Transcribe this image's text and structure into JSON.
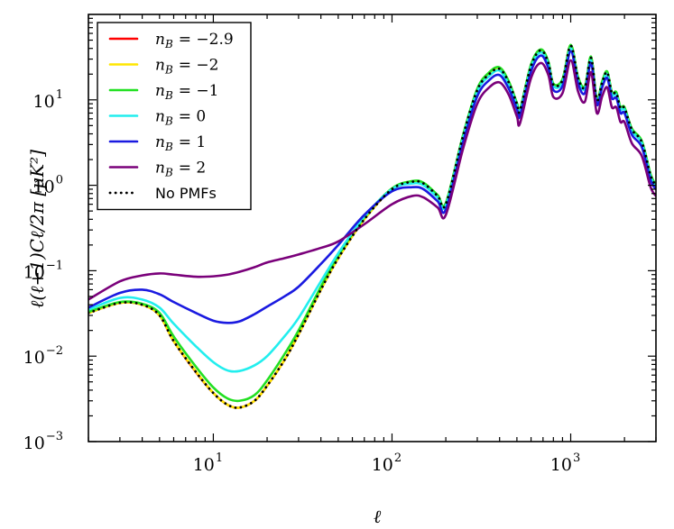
{
  "chart_data": {
    "type": "line",
    "title": "",
    "xlabel": "ℓ",
    "ylabel": "ℓ(ℓ+1)Cℓ/2π [μK²]",
    "xscale": "log",
    "yscale": "log",
    "xlim": [
      2,
      3000
    ],
    "ylim": [
      0.001,
      100
    ],
    "x_ticks": [
      {
        "value": 10,
        "base": "10",
        "exp": "1"
      },
      {
        "value": 100,
        "base": "10",
        "exp": "2"
      },
      {
        "value": 1000,
        "base": "10",
        "exp": "3"
      }
    ],
    "y_ticks": [
      {
        "value": 0.001,
        "base": "10",
        "exp": "−3"
      },
      {
        "value": 0.01,
        "base": "10",
        "exp": "−2"
      },
      {
        "value": 0.1,
        "base": "10",
        "exp": "−1"
      },
      {
        "value": 1,
        "base": "10",
        "exp": "0"
      },
      {
        "value": 10,
        "base": "10",
        "exp": "1"
      }
    ],
    "legend_position": "top-left",
    "series": [
      {
        "name": "n_B = −2.9",
        "label_var": "n",
        "label_sub": "B",
        "label_val": "= −2.9",
        "color": "#ff0000",
        "dash": "solid",
        "x": [
          2,
          3,
          4,
          5,
          6,
          8,
          10,
          12,
          14,
          17,
          20,
          25,
          30,
          40,
          50,
          70,
          100,
          130,
          150,
          180,
          200,
          250,
          300,
          350,
          400,
          450,
          500,
          520,
          600,
          680,
          750,
          800,
          900,
          1000,
          1100,
          1200,
          1300,
          1400,
          1500,
          1600,
          1700,
          1800,
          1900,
          2000,
          2200,
          2500,
          2800,
          3000
        ],
        "y": [
          0.032,
          0.042,
          0.04,
          0.03,
          0.015,
          0.0065,
          0.0037,
          0.0027,
          0.0025,
          0.003,
          0.0045,
          0.009,
          0.018,
          0.06,
          0.14,
          0.4,
          0.9,
          1.1,
          1.05,
          0.75,
          0.6,
          3.8,
          13,
          20,
          23,
          16,
          9,
          7.5,
          25,
          38,
          27,
          15,
          17,
          43,
          18,
          14,
          31,
          10,
          16,
          21,
          12,
          12,
          8,
          8,
          4.5,
          3.2,
          1.3,
          1.0
        ]
      },
      {
        "name": "n_B = −2",
        "label_var": "n",
        "label_sub": "B",
        "label_val": "= −2",
        "color": "#ffe600",
        "dash": "solid",
        "x": [
          2,
          3,
          4,
          5,
          6,
          8,
          10,
          12,
          14,
          17,
          20,
          25,
          30,
          40,
          50,
          70,
          100,
          130,
          150,
          180,
          200,
          250,
          300,
          350,
          400,
          450,
          500,
          520,
          600,
          680,
          750,
          800,
          900,
          1000,
          1100,
          1200,
          1300,
          1400,
          1500,
          1600,
          1700,
          1800,
          1900,
          2000,
          2200,
          2500,
          2800,
          3000
        ],
        "y": [
          0.032,
          0.042,
          0.04,
          0.03,
          0.015,
          0.0066,
          0.0037,
          0.0027,
          0.0025,
          0.003,
          0.0045,
          0.009,
          0.018,
          0.06,
          0.14,
          0.4,
          0.9,
          1.1,
          1.05,
          0.75,
          0.6,
          3.8,
          13,
          20,
          23,
          16,
          9,
          7.5,
          25,
          38,
          27,
          15,
          17,
          43,
          18,
          14,
          31,
          10,
          16,
          21,
          12,
          12,
          8,
          8,
          4.5,
          3.2,
          1.3,
          1.0
        ]
      },
      {
        "name": "n_B = −1",
        "label_var": "n",
        "label_sub": "B",
        "label_val": "= −1",
        "color": "#22e022",
        "dash": "solid",
        "x": [
          2,
          3,
          4,
          5,
          6,
          8,
          10,
          12,
          14,
          17,
          20,
          25,
          30,
          40,
          50,
          70,
          100,
          130,
          150,
          180,
          200,
          250,
          300,
          350,
          400,
          450,
          500,
          520,
          600,
          680,
          750,
          800,
          900,
          1000,
          1100,
          1200,
          1300,
          1400,
          1500,
          1600,
          1700,
          1800,
          1900,
          2000,
          2200,
          2500,
          2800,
          3000
        ],
        "y": [
          0.033,
          0.043,
          0.041,
          0.032,
          0.017,
          0.0075,
          0.0043,
          0.0032,
          0.003,
          0.0035,
          0.0052,
          0.0105,
          0.02,
          0.065,
          0.15,
          0.42,
          0.92,
          1.12,
          1.07,
          0.77,
          0.62,
          3.9,
          13.5,
          21,
          24,
          16.5,
          9.2,
          7.7,
          26,
          39,
          28,
          15.5,
          17.5,
          44,
          18.5,
          14.5,
          32,
          10.3,
          16.5,
          21.5,
          12.3,
          12.3,
          8.2,
          8.2,
          4.6,
          3.3,
          1.35,
          1.02
        ]
      },
      {
        "name": "n_B = 0",
        "label_var": "n",
        "label_sub": "B",
        "label_val": "= 0",
        "color": "#22eeee",
        "dash": "solid",
        "x": [
          2,
          3,
          4,
          5,
          6,
          8,
          10,
          12,
          14,
          17,
          20,
          25,
          30,
          40,
          50,
          70,
          100,
          130,
          150,
          180,
          200,
          250,
          300,
          350,
          400,
          450,
          500,
          520,
          600,
          680,
          750,
          800,
          900,
          1000,
          1100,
          1200,
          1300,
          1400,
          1500,
          1600,
          1700,
          1800,
          1900,
          2000,
          2200,
          2500,
          2800,
          3000
        ],
        "y": [
          0.035,
          0.048,
          0.046,
          0.037,
          0.024,
          0.013,
          0.0085,
          0.0068,
          0.0067,
          0.0078,
          0.01,
          0.017,
          0.028,
          0.075,
          0.16,
          0.43,
          0.9,
          1.05,
          1.0,
          0.72,
          0.58,
          3.6,
          12.5,
          19,
          22,
          15,
          8.6,
          7.2,
          24,
          36,
          26,
          14.5,
          16,
          40,
          17,
          13.5,
          29,
          9.6,
          15,
          20,
          11.5,
          11.5,
          7.7,
          7.7,
          4.3,
          3.1,
          1.25,
          0.96
        ]
      },
      {
        "name": "n_B = 1",
        "label_var": "n",
        "label_sub": "B",
        "label_val": "= 1",
        "color": "#1a1ae0",
        "dash": "solid",
        "x": [
          2,
          3,
          4,
          5,
          6,
          8,
          10,
          12,
          14,
          17,
          20,
          25,
          30,
          40,
          50,
          70,
          100,
          130,
          150,
          180,
          200,
          250,
          300,
          350,
          400,
          450,
          500,
          520,
          600,
          680,
          750,
          800,
          900,
          1000,
          1100,
          1200,
          1300,
          1400,
          1500,
          1600,
          1700,
          1800,
          1900,
          2000,
          2200,
          2500,
          2800,
          3000
        ],
        "y": [
          0.037,
          0.055,
          0.06,
          0.053,
          0.043,
          0.032,
          0.026,
          0.0245,
          0.0255,
          0.031,
          0.038,
          0.05,
          0.065,
          0.12,
          0.2,
          0.45,
          0.85,
          0.95,
          0.9,
          0.65,
          0.52,
          3.2,
          11,
          17,
          19.5,
          13.5,
          7.8,
          6.5,
          21.5,
          33,
          23.5,
          13,
          14.5,
          37,
          15.5,
          12,
          27,
          8.8,
          14,
          18,
          10.5,
          10.5,
          7,
          7,
          3.9,
          2.8,
          1.15,
          0.9
        ]
      },
      {
        "name": "n_B = 2",
        "label_var": "n",
        "label_sub": "B",
        "label_val": "= 2",
        "color": "#7a007a",
        "dash": "solid",
        "x": [
          2,
          3,
          4,
          5,
          6,
          8,
          10,
          12,
          14,
          17,
          20,
          25,
          30,
          40,
          50,
          70,
          100,
          130,
          150,
          180,
          200,
          250,
          300,
          350,
          400,
          450,
          500,
          520,
          600,
          680,
          750,
          800,
          900,
          1000,
          1100,
          1200,
          1300,
          1400,
          1500,
          1600,
          1700,
          1800,
          1900,
          2000,
          2200,
          2500,
          2800,
          3000
        ],
        "y": [
          0.046,
          0.075,
          0.088,
          0.093,
          0.09,
          0.085,
          0.086,
          0.09,
          0.097,
          0.11,
          0.125,
          0.14,
          0.155,
          0.185,
          0.22,
          0.35,
          0.6,
          0.75,
          0.72,
          0.55,
          0.45,
          2.7,
          9,
          14,
          16,
          11.5,
          6.4,
          5.3,
          18,
          27,
          19.5,
          10.8,
          12,
          29,
          12.5,
          9.5,
          21,
          7,
          11,
          14,
          8.2,
          8.2,
          5.5,
          5.5,
          3.1,
          2.2,
          0.95,
          0.75
        ]
      },
      {
        "name": "No PMFs",
        "label_plain": "No PMFs",
        "color": "#000000",
        "dash": "dotted",
        "x": [
          2,
          3,
          4,
          5,
          6,
          8,
          10,
          12,
          14,
          17,
          20,
          25,
          30,
          40,
          50,
          70,
          100,
          130,
          150,
          180,
          200,
          250,
          300,
          350,
          400,
          450,
          500,
          520,
          600,
          680,
          750,
          800,
          900,
          1000,
          1100,
          1200,
          1300,
          1400,
          1500,
          1600,
          1700,
          1800,
          1900,
          2000,
          2200,
          2500,
          2800,
          3000
        ],
        "y": [
          0.032,
          0.042,
          0.04,
          0.03,
          0.015,
          0.0065,
          0.0037,
          0.0027,
          0.0025,
          0.003,
          0.0045,
          0.009,
          0.018,
          0.06,
          0.14,
          0.4,
          0.9,
          1.1,
          1.05,
          0.75,
          0.6,
          3.8,
          13,
          20,
          23,
          16,
          9,
          7.5,
          25,
          38,
          27,
          15,
          17,
          43,
          18,
          14,
          31,
          10,
          16,
          21,
          12,
          12,
          8,
          8,
          4.5,
          3.2,
          1.3,
          1.0
        ]
      }
    ]
  }
}
